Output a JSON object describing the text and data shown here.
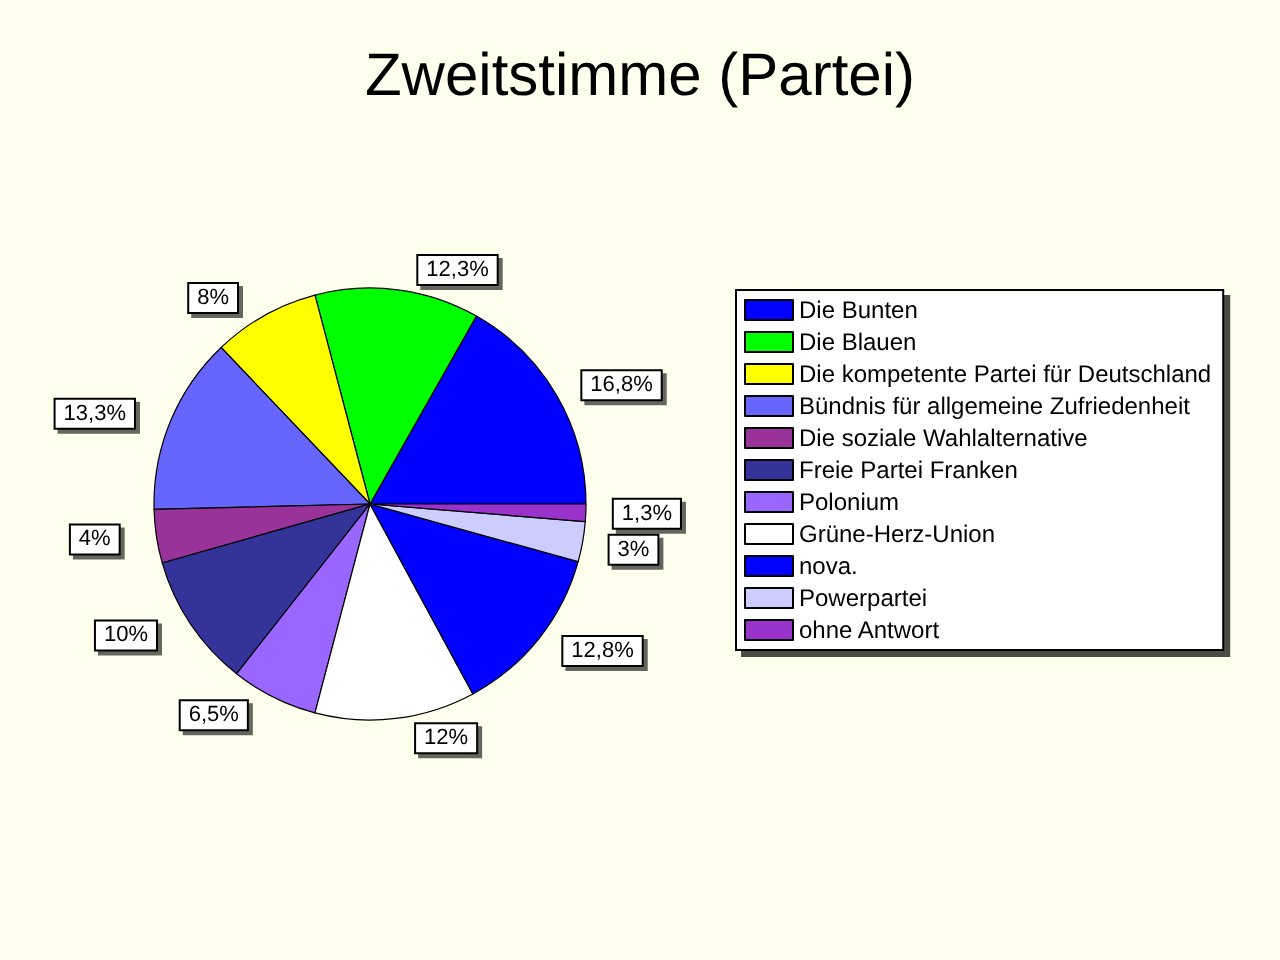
{
  "chart_data": {
    "type": "pie",
    "title": "Zweitstimme (Partei)",
    "categories": [
      "Die Bunten",
      "Die Blauen",
      "Die kompetente Partei für Deutschland",
      "Bündnis für allgemeine Zufriedenheit",
      "Die soziale Wahlalternative",
      "Freie Partei Franken",
      "Polonium",
      "Grüne-Herz-Union",
      "nova.",
      "Powerpartei",
      "ohne Antwort"
    ],
    "values": [
      16.8,
      12.3,
      8,
      13.3,
      4,
      10,
      6.5,
      12,
      12.8,
      3,
      1.3
    ],
    "value_labels": [
      "16,8%",
      "12,3%",
      "8%",
      "13,3%",
      "4%",
      "10%",
      "6,5%",
      "12%",
      "12,8%",
      "3%",
      "1,3%"
    ],
    "colors": [
      "#0000ff",
      "#00ff00",
      "#ffff00",
      "#6666ff",
      "#993399",
      "#333399",
      "#9966ff",
      "#ffffff",
      "#0000ff",
      "#ccccff",
      "#9933cc"
    ],
    "legend": "right"
  }
}
